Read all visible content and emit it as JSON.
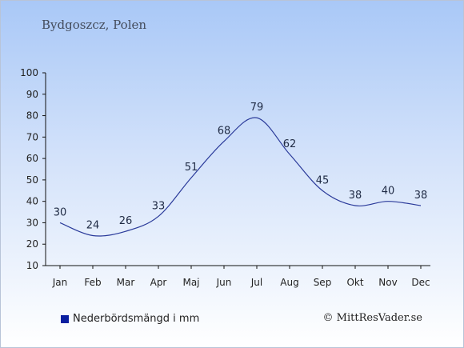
{
  "location": "Bydgoszcz, Polen",
  "credit": "© MittResVader.se",
  "legend": {
    "label": "Nederbördsmängd i mm",
    "color": "#0a1fa0"
  },
  "chart_data": {
    "type": "line",
    "categories": [
      "Jan",
      "Feb",
      "Mar",
      "Apr",
      "Maj",
      "Jun",
      "Jul",
      "Aug",
      "Sep",
      "Okt",
      "Nov",
      "Dec"
    ],
    "series": [
      {
        "name": "Nederbördsmängd i mm",
        "values": [
          30,
          24,
          26,
          33,
          51,
          68,
          79,
          62,
          45,
          38,
          40,
          38
        ],
        "color": "#2a3a9a"
      }
    ],
    "ylim": [
      10,
      100
    ],
    "yticks": [
      10,
      20,
      30,
      40,
      50,
      60,
      70,
      80,
      90,
      100
    ],
    "grid": false,
    "legend_position": "bottom-left"
  }
}
